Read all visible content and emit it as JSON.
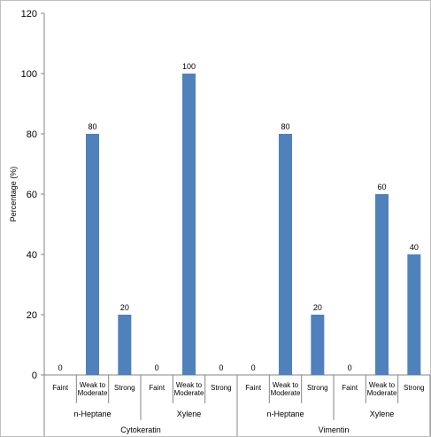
{
  "chart_data": {
    "type": "bar",
    "ylabel": "Percentage (%)",
    "ylim": [
      0,
      120
    ],
    "yticks": [
      0,
      20,
      40,
      60,
      80,
      100,
      120
    ],
    "grid": false,
    "legend": "none",
    "bar_color": "#4f81bd",
    "categories": [
      "Faint",
      "Weak to\nModerate",
      "Strong",
      "Faint",
      "Weak to\nModerate",
      "Strong",
      "Faint",
      "Weak to\nModerate",
      "Strong",
      "Faint",
      "Weak to\nModerate",
      "Strong"
    ],
    "values": [
      0,
      80,
      20,
      0,
      100,
      0,
      0,
      80,
      20,
      0,
      60,
      40
    ],
    "data_labels": [
      "0",
      "80",
      "20",
      "0",
      "100",
      "0",
      "0",
      "80",
      "20",
      "0",
      "60",
      "40"
    ],
    "subgroups": [
      "n-Heptane",
      "Xylene",
      "n-Heptane",
      "Xylene"
    ],
    "groups": [
      "Cytokeratin",
      "Vimentin"
    ]
  }
}
